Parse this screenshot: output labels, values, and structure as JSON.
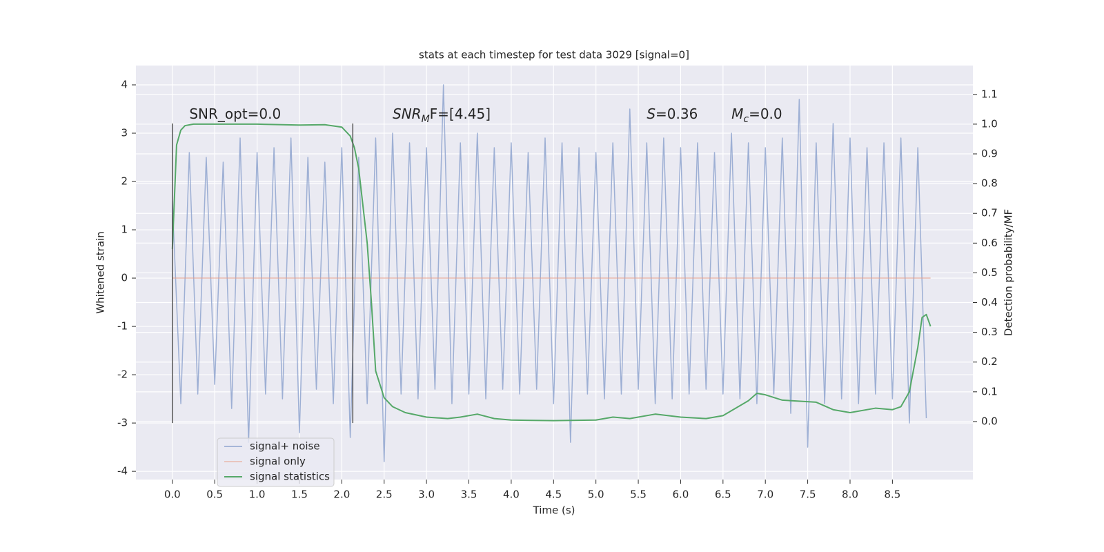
{
  "chart_data": {
    "type": "line",
    "title": "stats at each timestep for test data 3029 [signal=0]",
    "xlabel": "Time (s)",
    "ylabel": "Whitened strain",
    "y2label": "Detection probability/MF",
    "xlim": [
      -0.43,
      9.45
    ],
    "ylim": [
      -4.17,
      4.4
    ],
    "y2lim": [
      -0.195,
      1.197
    ],
    "xticks": [
      {
        "value": 0,
        "label": "0.0"
      },
      0.5,
      {
        "value": 1,
        "label": "1.0"
      },
      1.5,
      {
        "value": 2,
        "label": "2.0"
      },
      2.5,
      {
        "value": 3,
        "label": "3.0"
      },
      3.5,
      {
        "value": 4,
        "label": "4.0"
      },
      4.5,
      {
        "value": 5,
        "label": "5.0"
      },
      5.5,
      {
        "value": 6,
        "label": "6.0"
      },
      6.5,
      {
        "value": 7,
        "label": "7.0"
      },
      7.5,
      {
        "value": 8,
        "label": "8.0"
      },
      8.5
    ],
    "yticks": [
      -4,
      -3,
      -2,
      -1,
      0,
      1,
      2,
      3,
      4
    ],
    "y2ticks": [
      {
        "value": 0,
        "label": "0.0"
      },
      0.1,
      0.2,
      0.3,
      0.4,
      0.5,
      0.6,
      0.7,
      0.8,
      0.9,
      {
        "value": 1,
        "label": "1.0"
      },
      1.1
    ],
    "grid": true,
    "legend": "lower left",
    "series": [
      {
        "name": "signal+ noise",
        "color": "#8fa5cf",
        "x": [
          0,
          0.1,
          0.2,
          0.3,
          0.4,
          0.5,
          0.6,
          0.7,
          0.8,
          0.9,
          1.0,
          1.1,
          1.2,
          1.3,
          1.4,
          1.5,
          1.6,
          1.7,
          1.8,
          1.9,
          2.0,
          2.1,
          2.2,
          2.3,
          2.4,
          2.5,
          2.6,
          2.7,
          2.8,
          2.9,
          3.0,
          3.1,
          3.2,
          3.3,
          3.4,
          3.5,
          3.6,
          3.7,
          3.8,
          3.9,
          4.0,
          4.1,
          4.2,
          4.3,
          4.4,
          4.5,
          4.6,
          4.7,
          4.8,
          4.9,
          5.0,
          5.1,
          5.2,
          5.3,
          5.4,
          5.5,
          5.6,
          5.7,
          5.8,
          5.9,
          6.0,
          6.1,
          6.2,
          6.3,
          6.4,
          6.5,
          6.6,
          6.7,
          6.8,
          6.9,
          7.0,
          7.1,
          7.2,
          7.3,
          7.4,
          7.5,
          7.6,
          7.7,
          7.8,
          7.9,
          8.0,
          8.1,
          8.2,
          8.3,
          8.4,
          8.5,
          8.6,
          8.7,
          8.8,
          8.9
        ],
        "values": [
          1.6,
          -2.6,
          2.6,
          -2.4,
          2.5,
          -2.2,
          2.4,
          -2.7,
          2.9,
          -3.4,
          2.6,
          -2.4,
          2.7,
          -2.5,
          2.9,
          -3.2,
          2.5,
          -2.3,
          2.4,
          -2.6,
          2.7,
          -3.3,
          2.5,
          -2.6,
          2.9,
          -3.8,
          3.0,
          -2.4,
          2.8,
          -2.5,
          2.7,
          -2.3,
          4.0,
          -2.6,
          2.8,
          -2.4,
          3.0,
          -2.5,
          2.7,
          -2.3,
          2.8,
          -2.4,
          2.6,
          -2.3,
          2.9,
          -2.6,
          2.8,
          -3.4,
          2.7,
          -2.4,
          2.6,
          -2.5,
          2.8,
          -2.4,
          3.5,
          -2.3,
          2.8,
          -2.6,
          2.9,
          -2.5,
          2.7,
          -2.4,
          2.8,
          -2.3,
          2.6,
          -2.4,
          3.0,
          -2.5,
          2.8,
          -2.6,
          2.7,
          -2.4,
          2.9,
          -2.8,
          3.7,
          -3.5,
          2.8,
          -2.6,
          3.2,
          -2.5,
          2.9,
          -2.6,
          2.7,
          -2.4,
          2.8,
          -2.5,
          2.9,
          -3.0,
          2.7,
          -2.9
        ],
        "width": 1.5,
        "opacity": 0.85
      },
      {
        "name": "signal only",
        "color": "#e8a08a",
        "x": [
          0,
          8.95
        ],
        "values": [
          0,
          0
        ],
        "width": 1
      },
      {
        "name": "signal statistics",
        "color": "#55a868",
        "axis": "y2",
        "x": [
          0,
          0.05,
          0.1,
          0.15,
          0.25,
          0.5,
          1.0,
          1.5,
          1.8,
          2.0,
          2.1,
          2.15,
          2.2,
          2.3,
          2.35,
          2.4,
          2.5,
          2.6,
          2.75,
          3.0,
          3.25,
          3.4,
          3.6,
          3.8,
          4.0,
          4.5,
          5.0,
          5.2,
          5.4,
          5.7,
          6.0,
          6.3,
          6.5,
          6.8,
          6.9,
          7.0,
          7.2,
          7.6,
          7.8,
          8.0,
          8.3,
          8.5,
          8.6,
          8.7,
          8.8,
          8.85,
          8.9,
          8.95
        ],
        "values": [
          0.58,
          0.93,
          0.98,
          0.995,
          1.0,
          1.0,
          1.0,
          0.997,
          0.998,
          0.99,
          0.96,
          0.92,
          0.85,
          0.6,
          0.4,
          0.17,
          0.08,
          0.05,
          0.03,
          0.015,
          0.01,
          0.015,
          0.025,
          0.01,
          0.005,
          0.003,
          0.005,
          0.015,
          0.01,
          0.025,
          0.015,
          0.01,
          0.02,
          0.07,
          0.095,
          0.09,
          0.072,
          0.065,
          0.04,
          0.03,
          0.045,
          0.04,
          0.05,
          0.1,
          0.25,
          0.35,
          0.36,
          0.32
        ],
        "width": 2
      }
    ],
    "markers": {
      "x": [
        0,
        2.13
      ],
      "ymin": -3,
      "ymax": 3.2,
      "color": "#555555"
    },
    "annotations": [
      {
        "x": 0.2,
        "y": 3.3,
        "segments": [
          {
            "text": "SNR_opt=0.0"
          }
        ]
      },
      {
        "x": 2.6,
        "y": 3.3,
        "segments": [
          {
            "text": "SNR",
            "italic": true
          },
          {
            "text": "M",
            "italic": true,
            "sub": true
          },
          {
            "text": "F=[4.45]"
          }
        ]
      },
      {
        "x": 5.6,
        "y": 3.3,
        "segments": [
          {
            "text": "S",
            "italic": true
          },
          {
            "text": "=0.36"
          }
        ]
      },
      {
        "x": 6.6,
        "y": 3.3,
        "segments": [
          {
            "text": "M",
            "italic": true
          },
          {
            "text": "c",
            "italic": true,
            "sub": true
          },
          {
            "text": "=0.0"
          }
        ]
      }
    ]
  }
}
